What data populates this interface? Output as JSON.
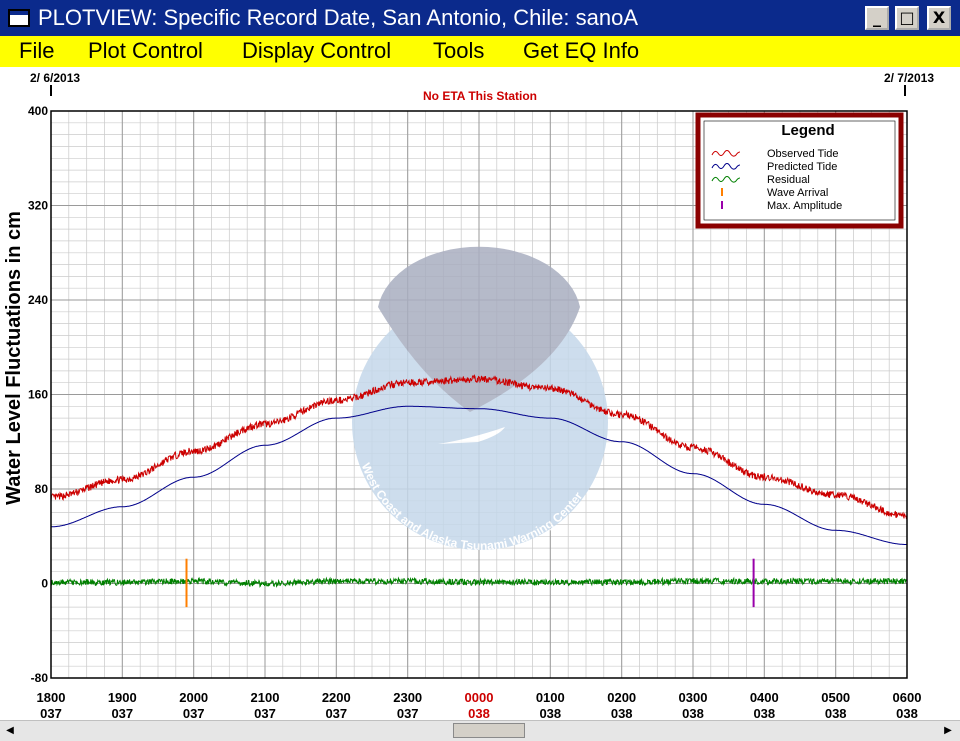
{
  "window": {
    "title": "PLOTVIEW: Specific Record Date, San Antonio, Chile: sanoA",
    "controls": {
      "minimize": "_",
      "maximize": "□",
      "close": "X"
    }
  },
  "menu": [
    {
      "label": "File"
    },
    {
      "label": "Plot Control"
    },
    {
      "label": "Display Control"
    },
    {
      "label": "Tools"
    },
    {
      "label": "Get EQ Info"
    }
  ],
  "plot": {
    "start_date": "2/ 6/2013",
    "end_date": "2/ 7/2013",
    "status": "No ETA This Station",
    "ylabel": "Water Level Fluctuations in cm",
    "watermark_text": "West Coast and Alaska Tsunami Warning Center",
    "legend": {
      "title": "Legend",
      "items": [
        {
          "label": "Observed Tide",
          "color": "#cc0000",
          "symbol": "wave"
        },
        {
          "label": "Predicted Tide",
          "color": "#00008b",
          "symbol": "wave"
        },
        {
          "label": "Residual",
          "color": "#008000",
          "symbol": "wave"
        },
        {
          "label": "Wave Arrival",
          "color": "#ff7f00",
          "symbol": "tick"
        },
        {
          "label": "Max. Amplitude",
          "color": "#9900aa",
          "symbol": "tick"
        }
      ]
    }
  },
  "chart_data": {
    "type": "line",
    "title": "",
    "ylabel": "Water Level Fluctuations in cm",
    "xlabel": "",
    "ylim": [
      -80,
      400
    ],
    "yticks": [
      -80,
      0,
      80,
      160,
      240,
      320,
      400
    ],
    "xlim": [
      18,
      30
    ],
    "x_units": "hours since 1800 on day 037",
    "xticks": [
      {
        "time": "1800",
        "day": "037",
        "highlight": false
      },
      {
        "time": "1900",
        "day": "037",
        "highlight": false
      },
      {
        "time": "2000",
        "day": "037",
        "highlight": false
      },
      {
        "time": "2100",
        "day": "037",
        "highlight": false
      },
      {
        "time": "2200",
        "day": "037",
        "highlight": false
      },
      {
        "time": "2300",
        "day": "037",
        "highlight": false
      },
      {
        "time": "0000",
        "day": "038",
        "highlight": true
      },
      {
        "time": "0100",
        "day": "038",
        "highlight": false
      },
      {
        "time": "0200",
        "day": "038",
        "highlight": false
      },
      {
        "time": "0300",
        "day": "038",
        "highlight": false
      },
      {
        "time": "0400",
        "day": "038",
        "highlight": false
      },
      {
        "time": "0500",
        "day": "038",
        "highlight": false
      },
      {
        "time": "0600",
        "day": "038",
        "highlight": false
      }
    ],
    "grid": true,
    "legend_position": "top-right",
    "series": [
      {
        "name": "Observed Tide",
        "color": "#cc0000",
        "x": [
          18,
          19,
          20,
          21,
          22,
          23,
          24,
          25,
          26,
          27,
          28,
          29,
          30
        ],
        "y": [
          73,
          88,
          112,
          135,
          155,
          170,
          173,
          165,
          143,
          115,
          90,
          75,
          57
        ]
      },
      {
        "name": "Predicted Tide",
        "color": "#00008b",
        "x": [
          18,
          19,
          20,
          21,
          22,
          23,
          24,
          25,
          26,
          27,
          28,
          29,
          30
        ],
        "y": [
          48,
          65,
          90,
          117,
          140,
          150,
          148,
          140,
          120,
          93,
          67,
          45,
          33
        ]
      },
      {
        "name": "Residual",
        "color": "#008000",
        "x": [
          18,
          19,
          20,
          21,
          22,
          23,
          24,
          25,
          26,
          27,
          28,
          29,
          30
        ],
        "y": [
          1,
          1,
          2,
          0,
          2,
          2,
          1,
          1,
          1,
          2,
          2,
          2,
          2
        ]
      }
    ],
    "markers": [
      {
        "name": "Wave Arrival",
        "color": "#ff7f00",
        "x": 19.9,
        "y_range": [
          -20,
          21
        ]
      },
      {
        "name": "Max. Amplitude",
        "color": "#9900aa",
        "x": 27.85,
        "y_range": [
          -20,
          21
        ]
      }
    ]
  }
}
